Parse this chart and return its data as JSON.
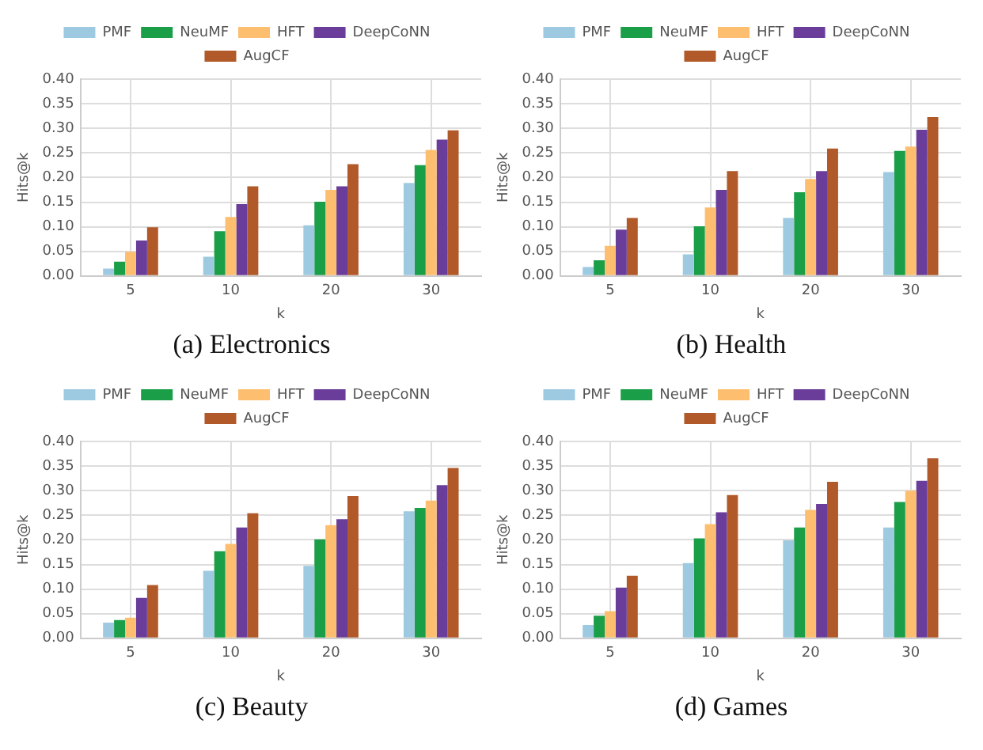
{
  "chart_data": [
    {
      "type": "bar",
      "title": "(a) Electronics",
      "xlabel": "k",
      "ylabel": "Hits@k",
      "categories": [
        "5",
        "10",
        "20",
        "30"
      ],
      "ylim": [
        0,
        0.4
      ],
      "yticks": [
        {
          "value": 0,
          "label": "0.00"
        },
        {
          "value": 0.05,
          "label": "0.05"
        },
        {
          "value": 0.1,
          "label": "0.10"
        },
        {
          "value": 0.15,
          "label": "0.15"
        },
        {
          "value": 0.2,
          "label": "0.20"
        },
        {
          "value": 0.25,
          "label": "0.25"
        },
        {
          "value": 0.3,
          "label": "0.30"
        },
        {
          "value": 0.35,
          "label": "0.35"
        },
        {
          "value": 0.4,
          "label": "0.40"
        }
      ],
      "grid": true,
      "legend": "top",
      "series": [
        {
          "name": "PMF",
          "color": "#9ecae1",
          "values": [
            0.015,
            0.039,
            0.103,
            0.189
          ]
        },
        {
          "name": "NeuMF",
          "color": "#1a9e48",
          "values": [
            0.029,
            0.091,
            0.151,
            0.225
          ]
        },
        {
          "name": "HFT",
          "color": "#fdbf6f",
          "values": [
            0.049,
            0.12,
            0.175,
            0.256
          ]
        },
        {
          "name": "DeepCoNN",
          "color": "#6a3d9a",
          "values": [
            0.072,
            0.146,
            0.182,
            0.277
          ]
        },
        {
          "name": "AugCF",
          "color": "#b15928",
          "values": [
            0.099,
            0.182,
            0.227,
            0.296
          ]
        }
      ]
    },
    {
      "type": "bar",
      "title": "(b) Health",
      "xlabel": "k",
      "ylabel": "Hits@k",
      "categories": [
        "5",
        "10",
        "20",
        "30"
      ],
      "ylim": [
        0,
        0.4
      ],
      "yticks": [
        {
          "value": 0,
          "label": "0.00"
        },
        {
          "value": 0.05,
          "label": "0.05"
        },
        {
          "value": 0.1,
          "label": "0.10"
        },
        {
          "value": 0.15,
          "label": "0.15"
        },
        {
          "value": 0.2,
          "label": "0.20"
        },
        {
          "value": 0.25,
          "label": "0.25"
        },
        {
          "value": 0.3,
          "label": "0.30"
        },
        {
          "value": 0.35,
          "label": "0.35"
        },
        {
          "value": 0.4,
          "label": "0.40"
        }
      ],
      "grid": true,
      "legend": "top",
      "series": [
        {
          "name": "PMF",
          "color": "#9ecae1",
          "values": [
            0.018,
            0.044,
            0.118,
            0.211
          ]
        },
        {
          "name": "NeuMF",
          "color": "#1a9e48",
          "values": [
            0.032,
            0.101,
            0.17,
            0.254
          ]
        },
        {
          "name": "HFT",
          "color": "#fdbf6f",
          "values": [
            0.061,
            0.139,
            0.197,
            0.263
          ]
        },
        {
          "name": "DeepCoNN",
          "color": "#6a3d9a",
          "values": [
            0.094,
            0.175,
            0.213,
            0.297
          ]
        },
        {
          "name": "AugCF",
          "color": "#b15928",
          "values": [
            0.118,
            0.213,
            0.259,
            0.323
          ]
        }
      ]
    },
    {
      "type": "bar",
      "title": "(c) Beauty",
      "xlabel": "k",
      "ylabel": "Hits@k",
      "categories": [
        "5",
        "10",
        "20",
        "30"
      ],
      "ylim": [
        0,
        0.4
      ],
      "yticks": [
        {
          "value": 0,
          "label": "0.00"
        },
        {
          "value": 0.05,
          "label": "0.05"
        },
        {
          "value": 0.1,
          "label": "0.10"
        },
        {
          "value": 0.15,
          "label": "0.15"
        },
        {
          "value": 0.2,
          "label": "0.20"
        },
        {
          "value": 0.25,
          "label": "0.25"
        },
        {
          "value": 0.3,
          "label": "0.30"
        },
        {
          "value": 0.35,
          "label": "0.35"
        },
        {
          "value": 0.4,
          "label": "0.40"
        }
      ],
      "grid": true,
      "legend": "top",
      "series": [
        {
          "name": "PMF",
          "color": "#9ecae1",
          "values": [
            0.032,
            0.137,
            0.147,
            0.258
          ]
        },
        {
          "name": "NeuMF",
          "color": "#1a9e48",
          "values": [
            0.037,
            0.177,
            0.201,
            0.265
          ]
        },
        {
          "name": "HFT",
          "color": "#fdbf6f",
          "values": [
            0.042,
            0.192,
            0.23,
            0.28
          ]
        },
        {
          "name": "DeepCoNN",
          "color": "#6a3d9a",
          "values": [
            0.082,
            0.225,
            0.242,
            0.311
          ]
        },
        {
          "name": "AugCF",
          "color": "#b15928",
          "values": [
            0.108,
            0.254,
            0.289,
            0.346
          ]
        }
      ]
    },
    {
      "type": "bar",
      "title": "(d) Games",
      "xlabel": "k",
      "ylabel": "Hits@k",
      "categories": [
        "5",
        "10",
        "20",
        "30"
      ],
      "ylim": [
        0,
        0.4
      ],
      "yticks": [
        {
          "value": 0,
          "label": "0.00"
        },
        {
          "value": 0.05,
          "label": "0.05"
        },
        {
          "value": 0.1,
          "label": "0.10"
        },
        {
          "value": 0.15,
          "label": "0.15"
        },
        {
          "value": 0.2,
          "label": "0.20"
        },
        {
          "value": 0.25,
          "label": "0.25"
        },
        {
          "value": 0.3,
          "label": "0.30"
        },
        {
          "value": 0.35,
          "label": "0.35"
        },
        {
          "value": 0.4,
          "label": "0.40"
        }
      ],
      "grid": true,
      "legend": "top",
      "series": [
        {
          "name": "PMF",
          "color": "#9ecae1",
          "values": [
            0.027,
            0.153,
            0.199,
            0.225
          ]
        },
        {
          "name": "NeuMF",
          "color": "#1a9e48",
          "values": [
            0.046,
            0.203,
            0.225,
            0.277
          ]
        },
        {
          "name": "HFT",
          "color": "#fdbf6f",
          "values": [
            0.055,
            0.232,
            0.261,
            0.3
          ]
        },
        {
          "name": "DeepCoNN",
          "color": "#6a3d9a",
          "values": [
            0.103,
            0.256,
            0.273,
            0.32
          ]
        },
        {
          "name": "AugCF",
          "color": "#b15928",
          "values": [
            0.127,
            0.291,
            0.318,
            0.366
          ]
        }
      ]
    }
  ]
}
